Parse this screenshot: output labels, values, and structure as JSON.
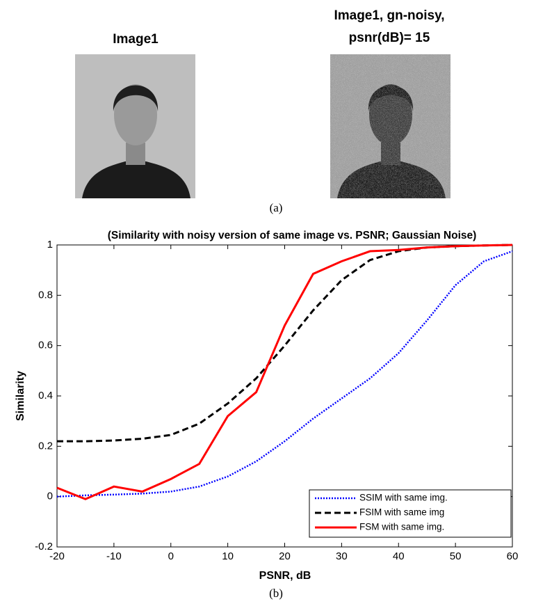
{
  "figure": {
    "image_titles": [
      [
        "Image1"
      ],
      [
        "Image1, gn-noisy,",
        "psnr(dB)= 15"
      ]
    ],
    "captions": [
      "(a)",
      "(b)"
    ]
  },
  "chart_data": {
    "type": "line",
    "title": "(Similarity with noisy version of same image vs. PSNR; Gaussian Noise)",
    "x_label": "PSNR, dB",
    "y_label": "Similarity",
    "x": [
      -20,
      -15,
      -10,
      -5,
      0,
      5,
      10,
      15,
      20,
      25,
      30,
      35,
      40,
      45,
      50,
      55,
      60
    ],
    "series": [
      {
        "name": "SSIM with same img.",
        "color": "#0000ff",
        "line_style": "dotted",
        "values": [
          0.0,
          0.005,
          0.008,
          0.012,
          0.02,
          0.04,
          0.08,
          0.14,
          0.22,
          0.31,
          0.39,
          0.47,
          0.57,
          0.7,
          0.84,
          0.935,
          0.975
        ]
      },
      {
        "name": "FSIM with same img",
        "color": "#000000",
        "line_style": "dashed",
        "values": [
          0.22,
          0.22,
          0.223,
          0.23,
          0.245,
          0.29,
          0.37,
          0.47,
          0.6,
          0.74,
          0.86,
          0.94,
          0.975,
          0.99,
          0.995,
          0.998,
          1.0
        ]
      },
      {
        "name": "FSM with same img.",
        "color": "#ff0000",
        "line_style": "solid",
        "values": [
          0.035,
          -0.01,
          0.04,
          0.02,
          0.07,
          0.13,
          0.32,
          0.415,
          0.68,
          0.885,
          0.935,
          0.975,
          0.98,
          0.99,
          0.995,
          0.998,
          1.0
        ]
      }
    ],
    "xlim": [
      -20,
      60
    ],
    "ylim": [
      -0.2,
      1
    ],
    "xticks": [
      -20,
      -10,
      0,
      10,
      20,
      30,
      40,
      50,
      60
    ],
    "yticks": [
      -0.2,
      0,
      0.2,
      0.4,
      0.6,
      0.8,
      1
    ],
    "legend": "lower right"
  }
}
